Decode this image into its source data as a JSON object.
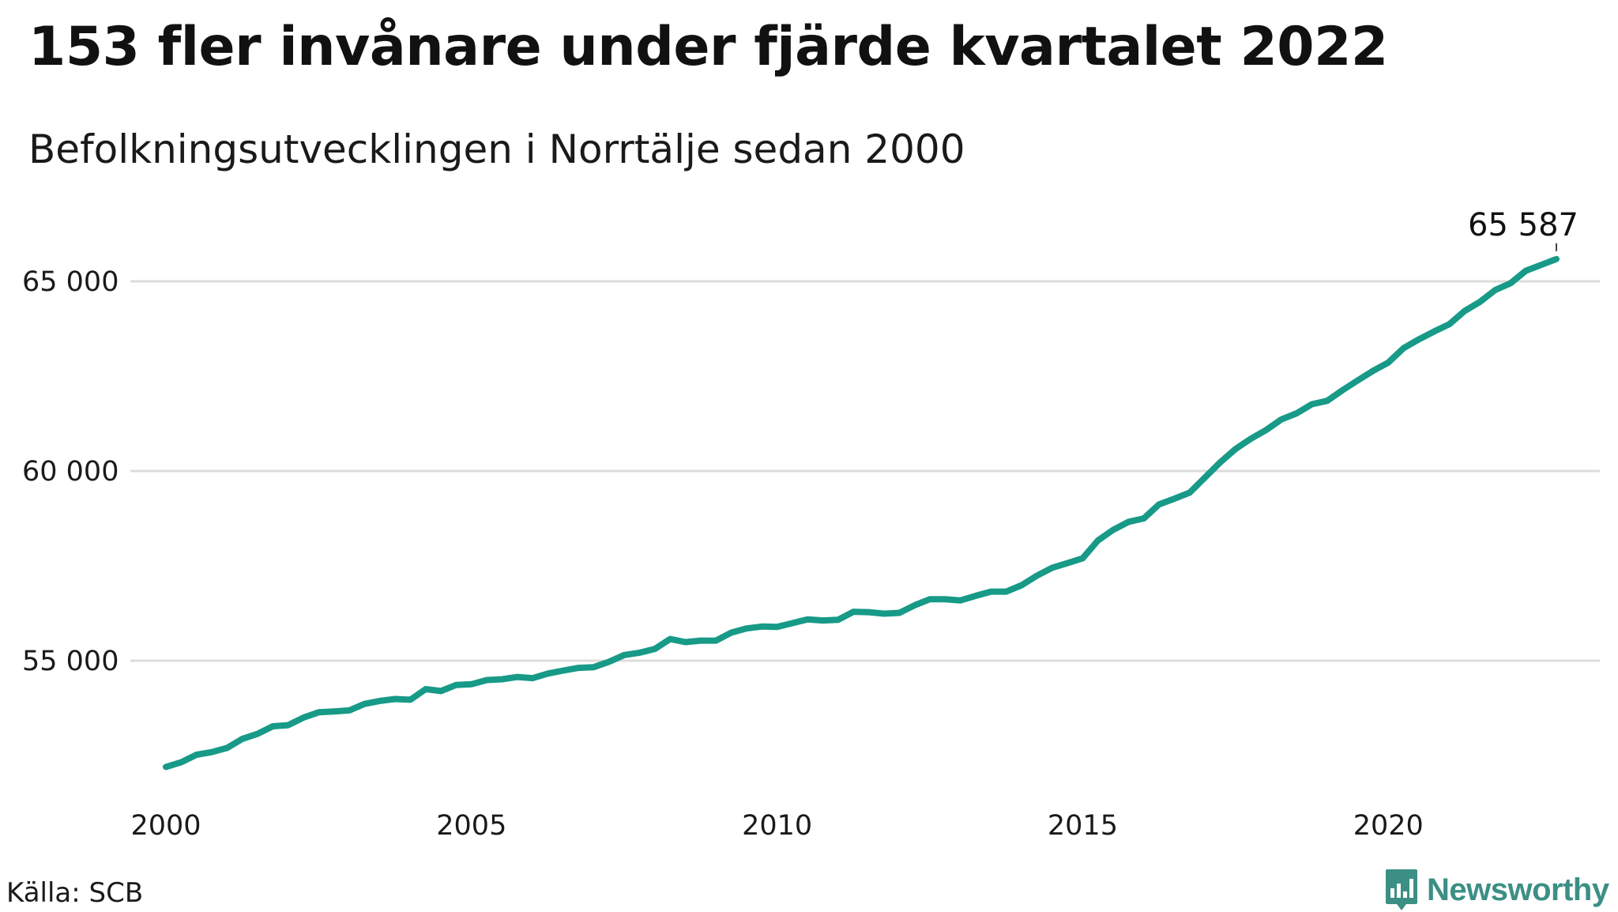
{
  "title": "153 fler invånare under fjärde kvartalet 2022",
  "subtitle": "Befolkningsutvecklingen i Norrtälje sedan 2000",
  "source": "Källa: SCB",
  "logo": {
    "text": "Newsworthy",
    "icon": "newsworthy-logo-icon",
    "color": "#3c8f85"
  },
  "colors": {
    "line": "#179a87",
    "grid": "#dcdcdc"
  },
  "chart_data": {
    "type": "line",
    "title": "153 fler invånare under fjärde kvartalet 2022",
    "subtitle": "Befolkningsutvecklingen i Norrtälje sedan 2000",
    "xlabel": "",
    "ylabel": "",
    "xlim": [
      2000,
      2023.75
    ],
    "ylim": [
      51000,
      66800
    ],
    "xticks": [
      {
        "value": 2000,
        "label": "2000"
      },
      {
        "value": 2005,
        "label": "2005"
      },
      {
        "value": 2010,
        "label": "2010"
      },
      {
        "value": 2015,
        "label": "2015"
      },
      {
        "value": 2020,
        "label": "2020"
      }
    ],
    "yticks": [
      {
        "value": 55000,
        "label": "55 000"
      },
      {
        "value": 60000,
        "label": "60 000"
      },
      {
        "value": 65000,
        "label": "65 000"
      }
    ],
    "grid": true,
    "legend": "none",
    "end_label": "65 587",
    "series": [
      {
        "x": [
          2000.0,
          2000.25,
          2000.5,
          2000.75,
          2001.0,
          2001.25,
          2001.5,
          2001.75,
          2002.0,
          2002.25,
          2002.5,
          2002.75,
          2003.0,
          2003.25,
          2003.5,
          2003.75,
          2004.0,
          2004.25,
          2004.5,
          2004.75,
          2005.0,
          2005.25,
          2005.5,
          2005.75,
          2006.0,
          2006.25,
          2006.5,
          2006.75,
          2007.0,
          2007.25,
          2007.5,
          2007.75,
          2008.0,
          2008.25,
          2008.5,
          2008.75,
          2009.0,
          2009.25,
          2009.5,
          2009.75,
          2010.0,
          2010.25,
          2010.5,
          2010.75,
          2011.0,
          2011.25,
          2011.5,
          2011.75,
          2012.0,
          2012.25,
          2012.5,
          2012.75,
          2013.0,
          2013.25,
          2013.5,
          2013.75,
          2014.0,
          2014.25,
          2014.5,
          2014.75,
          2015.0,
          2015.25,
          2015.5,
          2015.75,
          2016.0,
          2016.25,
          2016.5,
          2016.75,
          2017.0,
          2017.25,
          2017.5,
          2017.75,
          2018.0,
          2018.25,
          2018.5,
          2018.75,
          2019.0,
          2019.25,
          2019.5,
          2019.75,
          2020.0,
          2020.25,
          2020.5,
          2020.75,
          2021.0,
          2021.25,
          2021.5,
          2021.75,
          2022.0,
          2022.25,
          2022.5,
          2022.75
        ],
        "values": [
          52200,
          52320,
          52520,
          52590,
          52700,
          52940,
          53070,
          53270,
          53300,
          53500,
          53640,
          53660,
          53690,
          53860,
          53940,
          53990,
          53970,
          54250,
          54200,
          54360,
          54380,
          54490,
          54510,
          54570,
          54540,
          54660,
          54740,
          54810,
          54830,
          54970,
          55150,
          55210,
          55310,
          55570,
          55490,
          55530,
          55530,
          55740,
          55850,
          55900,
          55890,
          55990,
          56090,
          56060,
          56080,
          56290,
          56280,
          56240,
          56260,
          56460,
          56620,
          56620,
          56590,
          56710,
          56820,
          56820,
          56990,
          57240,
          57450,
          57570,
          57700,
          58170,
          58450,
          58660,
          58750,
          59120,
          59270,
          59430,
          59830,
          60230,
          60580,
          60850,
          61080,
          61360,
          61520,
          61760,
          61850,
          62130,
          62390,
          62640,
          62860,
          63240,
          63470,
          63680,
          63870,
          64220,
          64460,
          64770,
          64950,
          65280,
          65434,
          65587
        ]
      }
    ]
  }
}
